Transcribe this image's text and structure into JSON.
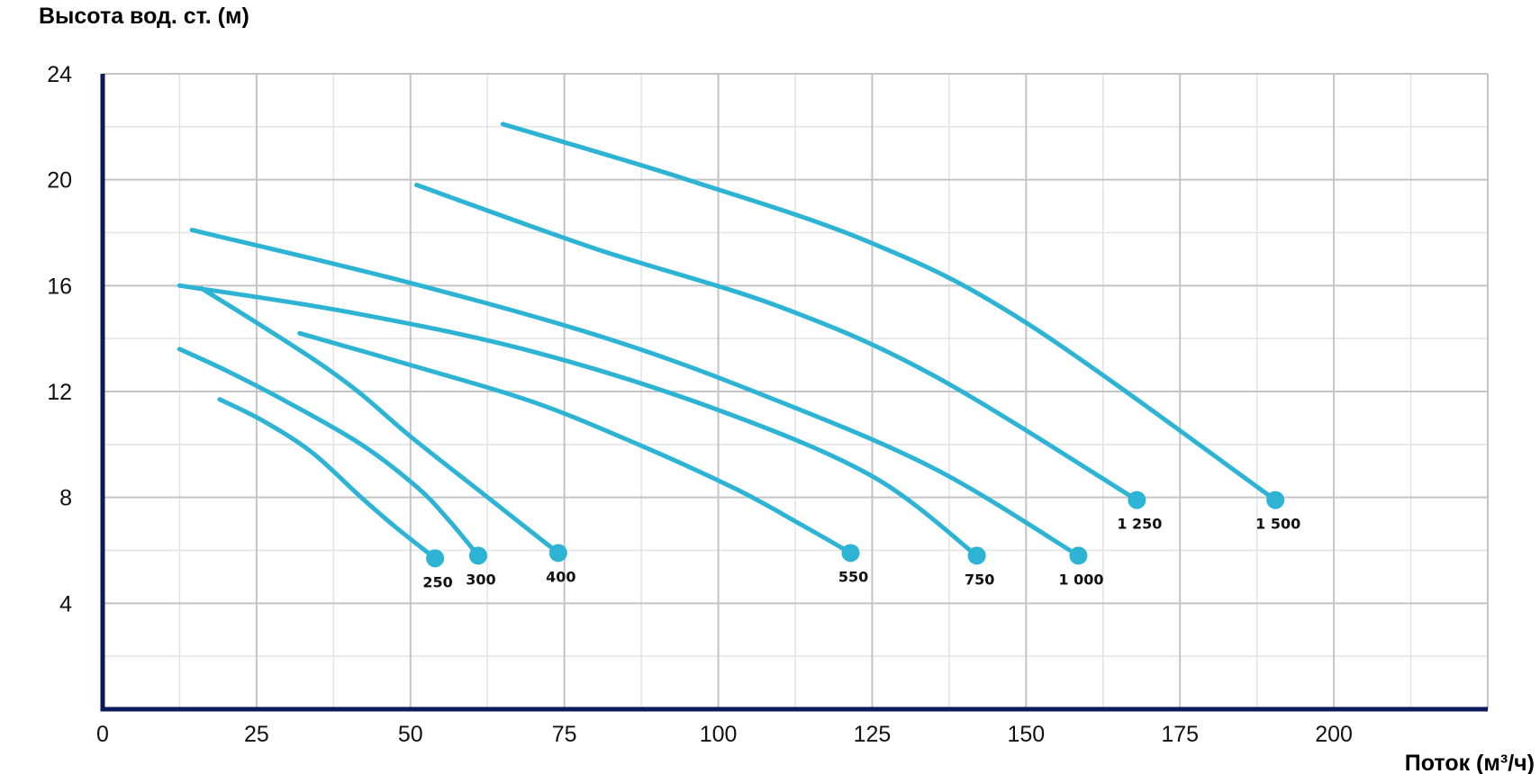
{
  "chart_data": {
    "type": "line",
    "ylabel": "Высота вод. ст. (м)",
    "xlabel": "Поток (м³/ч)",
    "xlim": [
      0,
      225
    ],
    "ylim": [
      0,
      24
    ],
    "x_ticks": [
      {
        "value": 0,
        "label": "0"
      },
      {
        "value": 25,
        "label": "25"
      },
      {
        "value": 50,
        "label": "50"
      },
      {
        "value": 75,
        "label": "75"
      },
      {
        "value": 100,
        "label": "100"
      },
      {
        "value": 125,
        "label": "125"
      },
      {
        "value": 150,
        "label": "150"
      },
      {
        "value": 175,
        "label": "175"
      },
      {
        "value": 200,
        "label": "200"
      }
    ],
    "y_ticks": [
      {
        "value": 4,
        "label": "4"
      },
      {
        "value": 8,
        "label": "8"
      },
      {
        "value": 12,
        "label": "12"
      },
      {
        "value": 16,
        "label": "16"
      },
      {
        "value": 20,
        "label": "20"
      },
      {
        "value": 24,
        "label": "24"
      }
    ],
    "grid": true,
    "minor_grid": true,
    "colors": {
      "curve": "#2DB4D5",
      "axis": "#0C1A5C",
      "grid_major": "#C4C4C4",
      "grid_minor": "#E3E3E3"
    },
    "series": [
      {
        "name": "250",
        "points": [
          [
            19,
            11.7
          ],
          [
            26,
            10.9
          ],
          [
            34,
            9.7
          ],
          [
            42,
            8.0
          ],
          [
            48,
            6.8
          ],
          [
            54,
            5.7
          ]
        ],
        "end": [
          54,
          5.7
        ]
      },
      {
        "name": "300",
        "points": [
          [
            12.5,
            13.6
          ],
          [
            20,
            12.8
          ],
          [
            30,
            11.6
          ],
          [
            42,
            10.0
          ],
          [
            51,
            8.4
          ],
          [
            56,
            7.2
          ],
          [
            61,
            5.8
          ]
        ],
        "end": [
          61,
          5.8
        ]
      },
      {
        "name": "400",
        "points": [
          [
            16,
            15.9
          ],
          [
            25,
            14.6
          ],
          [
            35,
            13.1
          ],
          [
            42,
            11.9
          ],
          [
            50,
            10.3
          ],
          [
            62,
            8.1
          ],
          [
            74,
            5.9
          ]
        ],
        "end": [
          74,
          5.9
        ]
      },
      {
        "name": "550",
        "points": [
          [
            32,
            14.2
          ],
          [
            50,
            13.0
          ],
          [
            70,
            11.6
          ],
          [
            87,
            10.0
          ],
          [
            103,
            8.3
          ],
          [
            114,
            6.9
          ],
          [
            121.5,
            5.9
          ]
        ],
        "end": [
          121.5,
          5.9
        ]
      },
      {
        "name": "750",
        "points": [
          [
            12.5,
            16.0
          ],
          [
            40,
            15.0
          ],
          [
            70,
            13.5
          ],
          [
            100,
            11.3
          ],
          [
            125,
            8.8
          ],
          [
            142,
            5.8
          ]
        ],
        "end": [
          142,
          5.8
        ]
      },
      {
        "name": "1 000",
        "points": [
          [
            14.5,
            18.1
          ],
          [
            50,
            16.1
          ],
          [
            82,
            14.0
          ],
          [
            108,
            11.8
          ],
          [
            135,
            9.1
          ],
          [
            158.5,
            5.8
          ]
        ],
        "end": [
          158.5,
          5.8
        ]
      },
      {
        "name": "1 250",
        "points": [
          [
            51,
            19.8
          ],
          [
            80,
            17.4
          ],
          [
            110,
            15.2
          ],
          [
            135,
            12.6
          ],
          [
            168,
            7.9
          ]
        ],
        "end": [
          168,
          7.9
        ]
      },
      {
        "name": "1 500",
        "points": [
          [
            65,
            22.1
          ],
          [
            95,
            20.0
          ],
          [
            125,
            17.6
          ],
          [
            150,
            14.6
          ],
          [
            190.5,
            7.9
          ]
        ],
        "end": [
          190.5,
          7.9
        ]
      }
    ]
  }
}
